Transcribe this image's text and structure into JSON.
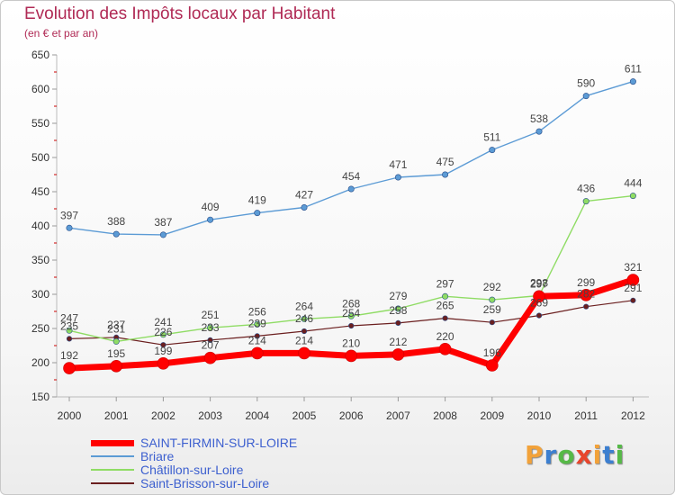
{
  "header": {
    "title": "Evolution des Impôts locaux par Habitant",
    "subtitle": "(en € et par an)"
  },
  "logo": {
    "letters": [
      "P",
      "r",
      "o",
      "x",
      "i",
      "t",
      "i"
    ],
    "colors": [
      "#f2a23a",
      "#3c7fd0",
      "#56b947",
      "#e8452c",
      "#f2a23a",
      "#3c7fd0",
      "#56b947"
    ]
  },
  "chart_data": {
    "type": "line",
    "title": "Evolution des Impôts locaux par Habitant",
    "subtitle": "(en € et par an)",
    "xlabel": "",
    "ylabel": "",
    "categories": [
      "2000",
      "2001",
      "2002",
      "2003",
      "2004",
      "2005",
      "2006",
      "2007",
      "2008",
      "2009",
      "2010",
      "2011",
      "2012"
    ],
    "ylim": [
      150,
      650
    ],
    "yticks": [
      150,
      200,
      250,
      300,
      350,
      400,
      450,
      500,
      550,
      600,
      650
    ],
    "grid": false,
    "legend_position": "bottom-left",
    "series": [
      {
        "name": "Saint-Brisson-sur-Loire",
        "color": "#6b1f1f",
        "width": 1.2,
        "marker": 2.8,
        "values": [
          235,
          237,
          226,
          233,
          239,
          246,
          254,
          258,
          265,
          259,
          269,
          282,
          291
        ]
      },
      {
        "name": "Châtillon-sur-Loire",
        "color": "#8fdc64",
        "width": 1.4,
        "marker": 3.2,
        "values": [
          247,
          231,
          241,
          251,
          256,
          264,
          268,
          279,
          297,
          292,
          298,
          436,
          444
        ]
      },
      {
        "name": "Briare",
        "color": "#5c9bd5",
        "width": 1.4,
        "marker": 3.2,
        "values": [
          397,
          388,
          387,
          409,
          419,
          427,
          454,
          471,
          475,
          511,
          538,
          590,
          611
        ]
      },
      {
        "name": "SAINT-FIRMIN-SUR-LOIRE",
        "color": "#ff0000",
        "width": 7,
        "marker": 6.5,
        "values": [
          192,
          195,
          199,
          207,
          214,
          214,
          210,
          212,
          220,
          196,
          297,
          299,
          321
        ]
      }
    ]
  },
  "legend": {
    "items": [
      {
        "label": "SAINT-FIRMIN-SUR-LOIRE",
        "color": "#ff0000",
        "thickness": 7
      },
      {
        "label": "Briare",
        "color": "#5c9bd5",
        "thickness": 2
      },
      {
        "label": "Châtillon-sur-Loire",
        "color": "#8fdc64",
        "thickness": 2
      },
      {
        "label": "Saint-Brisson-sur-Loire",
        "color": "#6b1f1f",
        "thickness": 2
      }
    ]
  }
}
